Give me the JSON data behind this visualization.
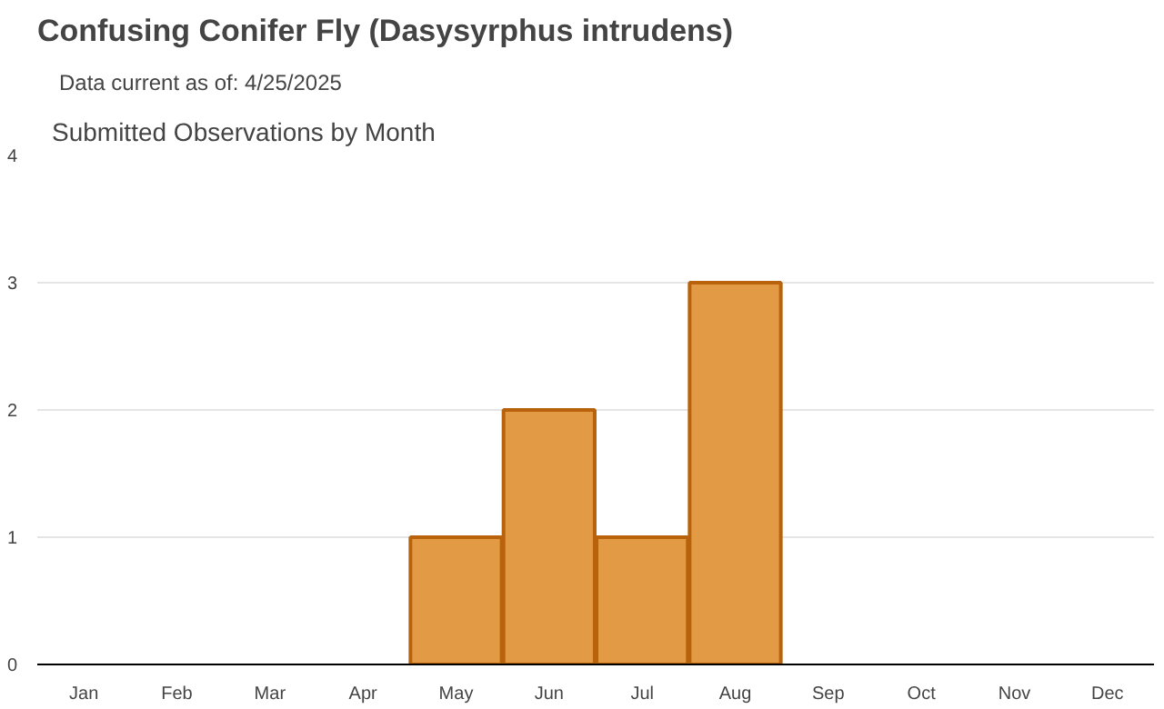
{
  "chart_data": {
    "type": "bar",
    "title": "Confusing Conifer Fly   (Dasysyrphus intrudens)",
    "subtitle": "Data current as of: 4/25/2025",
    "annotations": [
      "Submitted Observations by Month"
    ],
    "categories": [
      "Jan",
      "Feb",
      "Mar",
      "Apr",
      "May",
      "Jun",
      "Jul",
      "Aug",
      "Sep",
      "Oct",
      "Nov",
      "Dec"
    ],
    "values": [
      0,
      0,
      0,
      0,
      1,
      2,
      1,
      3,
      0,
      0,
      0,
      0
    ],
    "color": "#e39a45",
    "ylim": [
      0,
      4
    ],
    "yticks": [
      0,
      1,
      2,
      3,
      4
    ],
    "grid": "y"
  }
}
